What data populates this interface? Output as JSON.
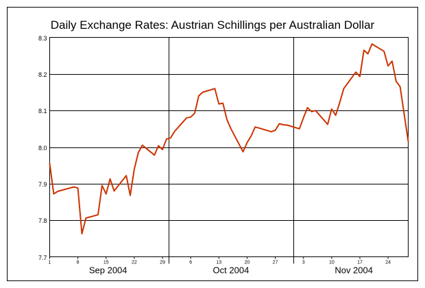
{
  "chart_data": {
    "type": "line",
    "title": "Daily Exchange Rates: Austrian Schillings per Australian Dollar",
    "xlabel": "",
    "ylabel": "",
    "ylim": [
      7.7,
      8.3
    ],
    "yticks": [
      "7.7",
      "7.8",
      "7.9",
      "8.0",
      "8.1",
      "8.2",
      "8.3"
    ],
    "grid": true,
    "legend": "none",
    "line_color": "#cc3300",
    "x_day_range": [
      1,
      90
    ],
    "month_labels": [
      {
        "label": "Sep 2004",
        "center_day": 15.5
      },
      {
        "label": "Oct 2004",
        "center_day": 46
      },
      {
        "label": "Nov 2004",
        "center_day": 76.5
      }
    ],
    "month_boundaries": [
      30.5,
      61.5
    ],
    "day_ticks": [
      {
        "day": 1,
        "label": "1"
      },
      {
        "day": 8,
        "label": "8"
      },
      {
        "day": 15,
        "label": "15"
      },
      {
        "day": 22,
        "label": "22"
      },
      {
        "day": 29,
        "label": "29"
      },
      {
        "day": 36,
        "label": "6"
      },
      {
        "day": 43,
        "label": "13"
      },
      {
        "day": 50,
        "label": "20"
      },
      {
        "day": 57,
        "label": "27"
      },
      {
        "day": 64,
        "label": "3"
      },
      {
        "day": 71,
        "label": "10"
      },
      {
        "day": 78,
        "label": "17"
      },
      {
        "day": 85,
        "label": "24"
      }
    ],
    "series": [
      {
        "x": [
          1,
          2,
          3,
          7,
          8,
          9,
          10,
          13,
          14,
          15,
          16,
          17,
          20,
          21,
          22,
          23,
          24,
          27,
          28,
          29,
          30,
          31,
          32,
          35,
          36,
          37,
          38,
          39,
          42,
          43,
          44,
          45,
          46,
          49,
          50,
          51,
          52,
          53,
          56,
          57,
          58,
          59,
          60,
          63,
          64,
          65,
          66,
          67,
          70,
          71,
          72,
          73,
          74,
          77,
          78,
          79,
          80,
          81,
          84,
          85,
          86,
          87,
          88,
          90
        ],
        "y": [
          7.955,
          7.872,
          7.879,
          7.891,
          7.888,
          7.763,
          7.806,
          7.815,
          7.895,
          7.872,
          7.913,
          7.88,
          7.922,
          7.868,
          7.94,
          7.985,
          8.005,
          7.978,
          8.004,
          7.993,
          8.022,
          8.025,
          8.043,
          8.08,
          8.082,
          8.093,
          8.14,
          8.15,
          8.16,
          8.118,
          8.12,
          8.075,
          8.05,
          7.987,
          8.012,
          8.03,
          8.055,
          8.052,
          8.042,
          8.046,
          8.064,
          8.061,
          8.06,
          8.05,
          8.08,
          8.108,
          8.097,
          8.1,
          8.062,
          8.104,
          8.087,
          8.122,
          8.16,
          8.205,
          8.193,
          8.265,
          8.255,
          8.282,
          8.262,
          8.222,
          8.235,
          8.18,
          8.165,
          8.016
        ]
      }
    ]
  }
}
